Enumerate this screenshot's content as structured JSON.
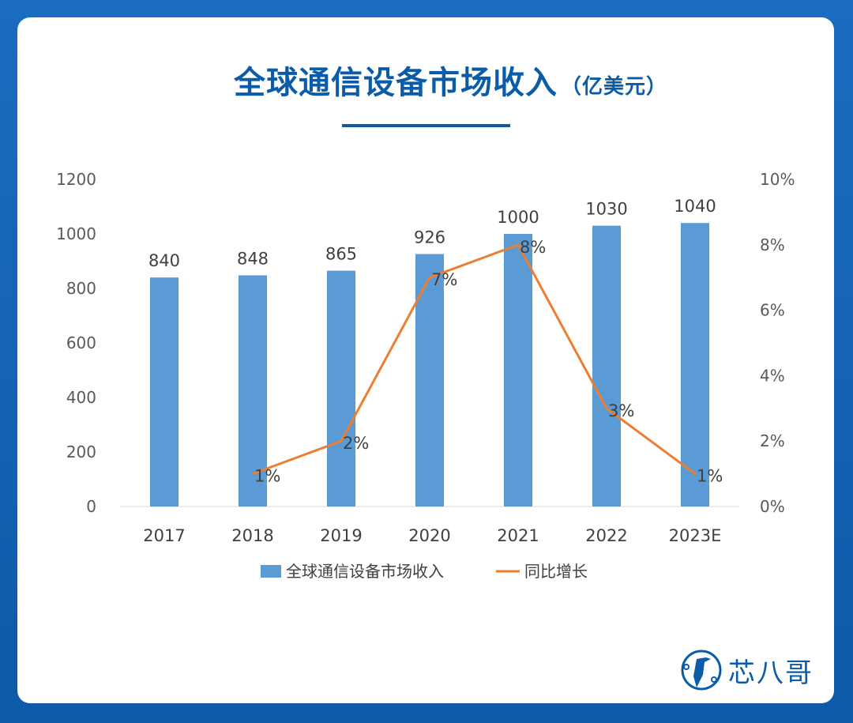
{
  "header": {
    "title": "全球通信设备市场收入",
    "unit": "（亿美元）"
  },
  "brand": {
    "name": "芯八哥"
  },
  "colors": {
    "background": "#1565b8",
    "title": "#0a5ca8",
    "bar": "#5b9bd5",
    "line": "#ed7d31"
  },
  "chart_data": {
    "type": "bar+line",
    "title": "全球通信设备市场收入（亿美元）",
    "categories": [
      "2017",
      "2018",
      "2019",
      "2020",
      "2021",
      "2022",
      "2023E"
    ],
    "series": [
      {
        "name": "全球通信设备市场收入",
        "type": "bar",
        "axis": "left",
        "values": [
          840,
          848,
          865,
          926,
          1000,
          1030,
          1040
        ],
        "labels": [
          "840",
          "848",
          "865",
          "926",
          "1000",
          "1030",
          "1040"
        ]
      },
      {
        "name": "同比增长",
        "type": "line",
        "axis": "right",
        "values": [
          null,
          1,
          2,
          7,
          8,
          3,
          1
        ],
        "labels": [
          "",
          "1%",
          "2%",
          "7%",
          "8%",
          "3%",
          "1%"
        ]
      }
    ],
    "y_left": {
      "range": [
        0,
        1200
      ],
      "ticks": [
        "0",
        "200",
        "400",
        "600",
        "800",
        "1000",
        "1200"
      ]
    },
    "y_right": {
      "range": [
        0,
        10
      ],
      "ticks": [
        "0%",
        "2%",
        "4%",
        "6%",
        "8%",
        "10%"
      ]
    },
    "grid": false,
    "legend": "bottom"
  }
}
